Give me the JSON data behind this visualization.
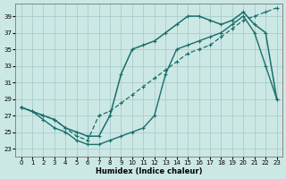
{
  "xlabel": "Humidex (Indice chaleur)",
  "bg_color": "#cce8e5",
  "grid_color": "#aacccc",
  "line_color": "#1a6e6a",
  "xlim": [
    -0.5,
    23.5
  ],
  "ylim": [
    22.0,
    40.5
  ],
  "xticks": [
    0,
    1,
    2,
    3,
    4,
    5,
    6,
    7,
    8,
    9,
    10,
    11,
    12,
    13,
    14,
    15,
    16,
    17,
    18,
    19,
    20,
    21,
    22,
    23
  ],
  "yticks": [
    23,
    25,
    27,
    29,
    31,
    33,
    35,
    37,
    39
  ],
  "line1_x": [
    0,
    1,
    2,
    3,
    4,
    5,
    6,
    7,
    8,
    9,
    10,
    11,
    12,
    13,
    14,
    15,
    16,
    17,
    18,
    19,
    20,
    21,
    22,
    23
  ],
  "line1_y": [
    28,
    27.5,
    27,
    26.5,
    25.5,
    24.5,
    24,
    27,
    27.5,
    28.5,
    29.5,
    30.5,
    31.5,
    32.5,
    33.5,
    34.5,
    35,
    35.5,
    36.5,
    37.5,
    38.5,
    39,
    39.5,
    40
  ],
  "line2_x": [
    0,
    1,
    2,
    3,
    4,
    5,
    6,
    7,
    8,
    9,
    10,
    11,
    12,
    13,
    14,
    15,
    16,
    17,
    18,
    19,
    20,
    21,
    22,
    23
  ],
  "line2_y": [
    28,
    27.5,
    26.5,
    25.5,
    25,
    24,
    23.5,
    23.5,
    24,
    24.5,
    25,
    25.5,
    27,
    32,
    35,
    35.5,
    36,
    36.5,
    37,
    38,
    39,
    37,
    33,
    29
  ],
  "line3_x": [
    0,
    2,
    3,
    4,
    5,
    6,
    7,
    8,
    9,
    10,
    11,
    12,
    13,
    14,
    15,
    16,
    17,
    18,
    19,
    20,
    21,
    22,
    23
  ],
  "line3_y": [
    28,
    27,
    26.5,
    25.5,
    25,
    24.5,
    24.5,
    27,
    32,
    35,
    35.5,
    36,
    37,
    38,
    39,
    39,
    38.5,
    38,
    38.5,
    39.5,
    38,
    37,
    29
  ]
}
